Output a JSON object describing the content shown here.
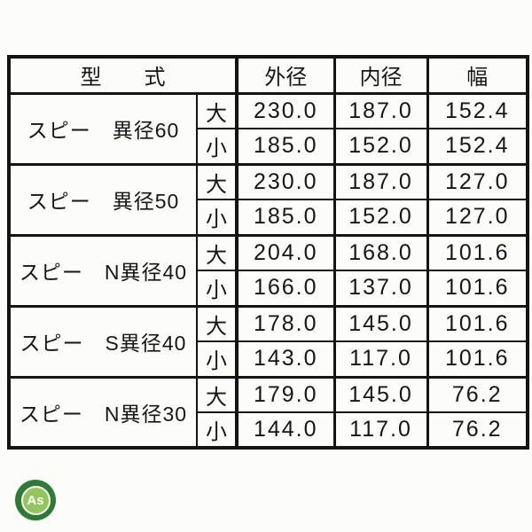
{
  "logo": {
    "text": "As",
    "outer_color": "#2d7c33",
    "inner_color": "#95c65d",
    "text_color": "#ffffff"
  },
  "table": {
    "header": {
      "model": "型　　式",
      "outer_diameter": "外径",
      "inner_diameter": "内径",
      "width": "幅"
    },
    "size_large": "大",
    "size_small": "小",
    "groups": [
      {
        "model": "スピー　異径60",
        "large": {
          "outer": "230.0",
          "inner": "187.0",
          "width": "152.4"
        },
        "small": {
          "outer": "185.0",
          "inner": "152.0",
          "width": "152.4"
        }
      },
      {
        "model": "スピー　異径50",
        "large": {
          "outer": "230.0",
          "inner": "187.0",
          "width": "127.0"
        },
        "small": {
          "outer": "185.0",
          "inner": "152.0",
          "width": "127.0"
        }
      },
      {
        "model": "スピー　N異径40",
        "large": {
          "outer": "204.0",
          "inner": "168.0",
          "width": "101.6"
        },
        "small": {
          "outer": "166.0",
          "inner": "137.0",
          "width": "101.6"
        }
      },
      {
        "model": "スピー　S異径40",
        "large": {
          "outer": "178.0",
          "inner": "145.0",
          "width": "101.6"
        },
        "small": {
          "outer": "143.0",
          "inner": "117.0",
          "width": "101.6"
        }
      },
      {
        "model": "スピー　N異径30",
        "large": {
          "outer": "179.0",
          "inner": "145.0",
          "width": "76.2"
        },
        "small": {
          "outer": "144.0",
          "inner": "117.0",
          "width": "76.2"
        }
      }
    ]
  }
}
